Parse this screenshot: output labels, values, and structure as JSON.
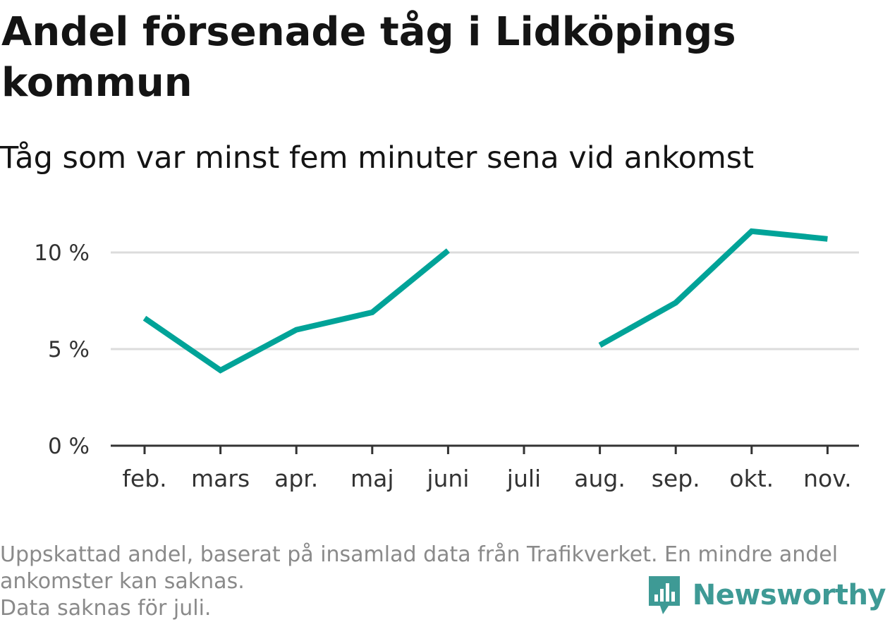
{
  "title": "Andel försenade tåg i Lidköpings kommun",
  "subtitle": "Tåg som var minst fem minuter sena vid ankomst",
  "caption": {
    "line1": "Uppskattad andel, baserat på insamlad data från Trafikverket. En mindre andel ankomster kan saknas.",
    "line2": "Data saknas för juli."
  },
  "brand": {
    "name": "Newsworthy",
    "color": "#3e9a95",
    "icon": "newsworthy-logo-icon"
  },
  "chart_data": {
    "type": "line",
    "categories": [
      "feb.",
      "mars",
      "apr.",
      "maj",
      "juni",
      "juli",
      "aug.",
      "sep.",
      "okt.",
      "nov."
    ],
    "series": [
      {
        "values": [
          6.6,
          3.9,
          6.0,
          6.9,
          10.1,
          null,
          5.2,
          7.4,
          11.1,
          10.7
        ],
        "color": "#00a398"
      }
    ],
    "ylim": [
      0,
      12
    ],
    "yticks": [
      0,
      5,
      10
    ],
    "ytick_labels": [
      "0 %",
      "5 %",
      "10 %"
    ],
    "xlabel": "",
    "ylabel": "",
    "grid": true,
    "legend": "none",
    "missing": [
      "juli"
    ]
  }
}
